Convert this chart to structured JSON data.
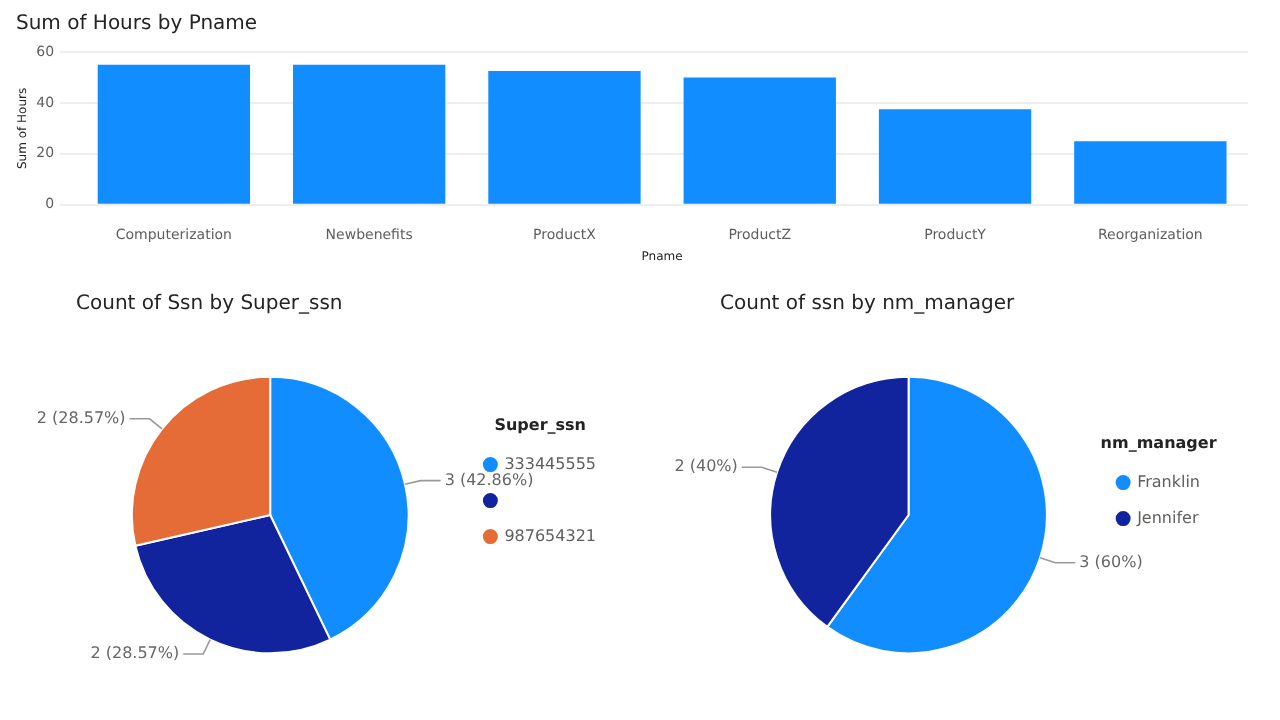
{
  "chart_data": [
    {
      "type": "bar",
      "title": "Sum of Hours by Pname",
      "xlabel": "Pname",
      "ylabel": "Sum of Hours",
      "categories": [
        "Computerization",
        "Newbenefits",
        "ProductX",
        "ProductZ",
        "ProductY",
        "Reorganization"
      ],
      "values": [
        55,
        55,
        52.5,
        50,
        37.5,
        25
      ],
      "color": "#118dff",
      "ylim": [
        0,
        60
      ],
      "yticks": [
        0,
        20,
        40,
        60
      ],
      "grid": "y",
      "legend": false
    },
    {
      "type": "pie",
      "title": "Count of Ssn by Super_ssn",
      "legend_title": "Super_ssn",
      "categories": [
        "333445555",
        null,
        "987654321"
      ],
      "values": [
        3,
        2,
        2
      ],
      "colors": [
        "#118dff",
        "#12239e",
        "#e66c37"
      ],
      "value_labels": [
        "3 (42.86%)",
        "2 (28.57%)",
        "2 (28.57%)"
      ],
      "legend": "right"
    },
    {
      "type": "pie",
      "title": "Count of ssn by nm_manager",
      "legend_title": "nm_manager",
      "categories": [
        "Franklin",
        "Jennifer"
      ],
      "values": [
        3,
        2
      ],
      "colors": [
        "#118dff",
        "#12239e"
      ],
      "value_labels": [
        "3 (60%)",
        "2 (40%)"
      ],
      "legend": "right"
    }
  ]
}
